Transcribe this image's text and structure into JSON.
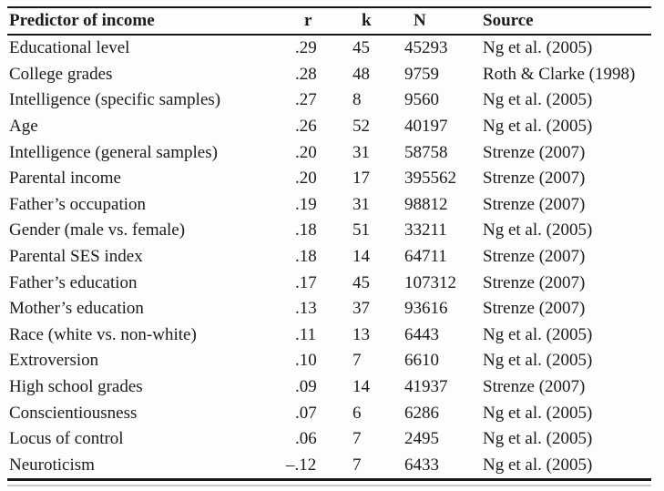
{
  "table": {
    "header": {
      "predictor": "Predictor of income",
      "r": "r",
      "k": "k",
      "n": "N",
      "source": "Source"
    },
    "rows": [
      {
        "predictor": "Educational level",
        "r": ".29",
        "k": "45",
        "n": "45293",
        "source": "Ng et al. (2005)"
      },
      {
        "predictor": "College grades",
        "r": ".28",
        "k": "48",
        "n": "9759",
        "source": "Roth & Clarke (1998)"
      },
      {
        "predictor": "Intelligence (specific samples)",
        "r": ".27",
        "k": "8",
        "n": "9560",
        "source": "Ng et al. (2005)"
      },
      {
        "predictor": "Age",
        "r": ".26",
        "k": "52",
        "n": "40197",
        "source": "Ng et al. (2005)"
      },
      {
        "predictor": "Intelligence (general samples)",
        "r": ".20",
        "k": "31",
        "n": "58758",
        "source": "Strenze (2007)"
      },
      {
        "predictor": "Parental income",
        "r": ".20",
        "k": "17",
        "n": "395562",
        "source": "Strenze (2007)"
      },
      {
        "predictor": "Father’s occupation",
        "r": ".19",
        "k": "31",
        "n": "98812",
        "source": "Strenze (2007)"
      },
      {
        "predictor": "Gender (male vs. female)",
        "r": ".18",
        "k": "51",
        "n": "33211",
        "source": "Ng et al. (2005)"
      },
      {
        "predictor": "Parental SES index",
        "r": ".18",
        "k": "14",
        "n": "64711",
        "source": "Strenze (2007)"
      },
      {
        "predictor": "Father’s education",
        "r": ".17",
        "k": "45",
        "n": "107312",
        "source": "Strenze (2007)"
      },
      {
        "predictor": "Mother’s education",
        "r": ".13",
        "k": "37",
        "n": "93616",
        "source": "Strenze (2007)"
      },
      {
        "predictor": "Race (white vs. non-white)",
        "r": ".11",
        "k": "13",
        "n": "6443",
        "source": "Ng et al. (2005)"
      },
      {
        "predictor": "Extroversion",
        "r": ".10",
        "k": "7",
        "n": "6610",
        "source": "Ng et al. (2005)"
      },
      {
        "predictor": "High school grades",
        "r": ".09",
        "k": "14",
        "n": "41937",
        "source": "Strenze (2007)"
      },
      {
        "predictor": "Conscientiousness",
        "r": ".07",
        "k": "6",
        "n": "6286",
        "source": "Ng et al. (2005)"
      },
      {
        "predictor": "Locus of control",
        "r": ".06",
        "k": "7",
        "n": "2495",
        "source": "Ng et al. (2005)"
      },
      {
        "predictor": "Neuroticism",
        "r": "–.12",
        "k": "7",
        "n": "6433",
        "source": "Ng et al. (2005)"
      }
    ]
  },
  "colors": {
    "text": "#1b1b1b",
    "rule": "#161616",
    "background": "#fdfdfd"
  }
}
